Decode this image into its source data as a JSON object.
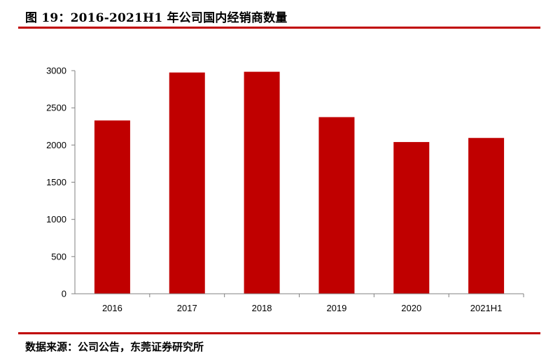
{
  "figure": {
    "title": "图 19：2016-2021H1 年公司国内经销商数量",
    "source": "数据来源：公司公告，东莞证券研究所"
  },
  "colors": {
    "bar": "#c00000",
    "rule": "#c00000",
    "axis": "#808080"
  },
  "chart_data": {
    "type": "bar",
    "categories": [
      "2016",
      "2017",
      "2018",
      "2019",
      "2020",
      "2021H1"
    ],
    "values": [
      2330,
      2975,
      2985,
      2375,
      2040,
      2095
    ],
    "title": "",
    "xlabel": "",
    "ylabel": "",
    "ylim": [
      0,
      3000
    ],
    "yticks": [
      0,
      500,
      1000,
      1500,
      2000,
      2500,
      3000
    ],
    "grid": false,
    "legend": "none"
  }
}
